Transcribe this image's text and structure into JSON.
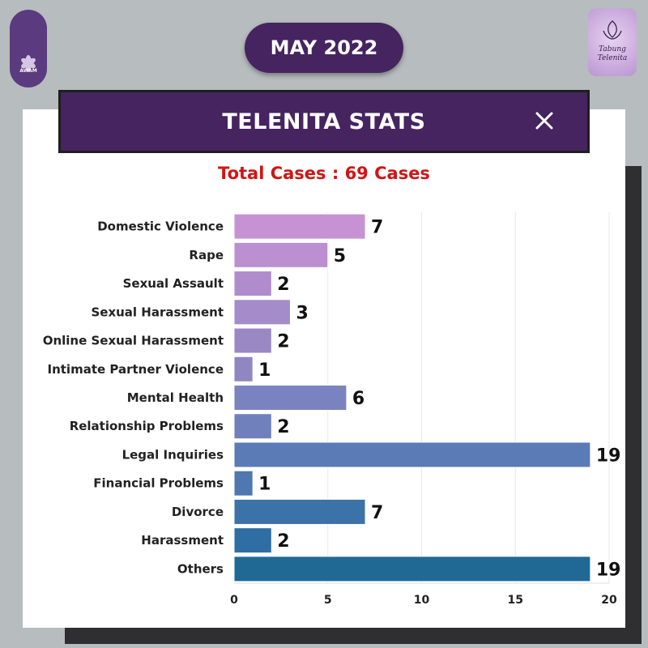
{
  "header": {
    "month": "MAY 2022",
    "left_logo_text": "AWAM",
    "right_logo_text": [
      "Tabung",
      "Telenita"
    ]
  },
  "card": {
    "title": "TELENITA STATS",
    "close_icon": "close-icon",
    "total_cases": "Total Cases : 69 Cases"
  },
  "colors": {
    "background": "#b7bcbf",
    "purple": "#452460",
    "total_text": "#d21414"
  },
  "chart_data": {
    "type": "bar",
    "orientation": "horizontal",
    "title": "",
    "xlabel": "",
    "ylabel": "",
    "categories": [
      "Domestic Violence",
      "Rape",
      "Sexual Assault",
      "Sexual Harassment",
      "Online Sexual Harassment",
      "Intimate Partner Violence",
      "Mental Health",
      "Relationship Problems",
      "Legal Inquiries",
      "Financial Problems",
      "Divorce",
      "Harassment",
      "Others"
    ],
    "values": [
      7,
      5,
      2,
      3,
      2,
      1,
      6,
      2,
      19,
      1,
      7,
      2,
      19
    ],
    "colors": [
      "#c692d3",
      "#bb8fd0",
      "#b08ccc",
      "#a48bc9",
      "#9a88c5",
      "#8f86c2",
      "#7a82bf",
      "#6f80bc",
      "#5a7bb6",
      "#4f77b0",
      "#3b72a8",
      "#2e6ea3",
      "#1f6994"
    ],
    "xlim": [
      0,
      20
    ],
    "xticks": [
      0,
      5,
      10,
      15,
      20
    ],
    "grid": true
  }
}
